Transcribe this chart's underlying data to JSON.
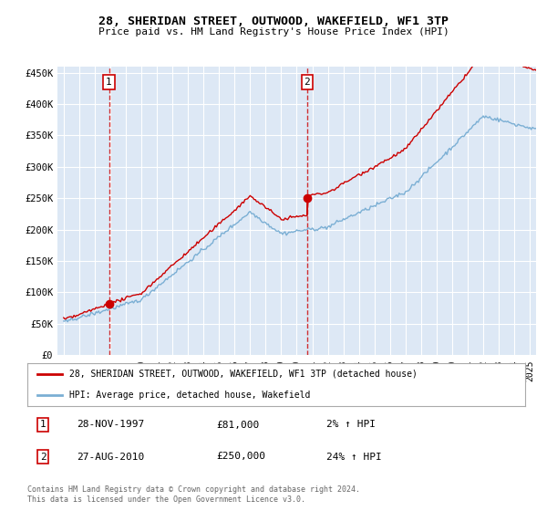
{
  "title": "28, SHERIDAN STREET, OUTWOOD, WAKEFIELD, WF1 3TP",
  "subtitle": "Price paid vs. HM Land Registry's House Price Index (HPI)",
  "ylim": [
    0,
    460000
  ],
  "yticks": [
    0,
    50000,
    100000,
    150000,
    200000,
    250000,
    300000,
    350000,
    400000,
    450000
  ],
  "ytick_labels": [
    "£0",
    "£50K",
    "£100K",
    "£150K",
    "£200K",
    "£250K",
    "£300K",
    "£350K",
    "£400K",
    "£450K"
  ],
  "plot_bg_color": "#dde8f5",
  "grid_color": "#ffffff",
  "sale1_price": 81000,
  "sale2_price": 250000,
  "line_color_property": "#cc0000",
  "line_color_hpi": "#7bafd4",
  "legend_property": "28, SHERIDAN STREET, OUTWOOD, WAKEFIELD, WF1 3TP (detached house)",
  "legend_hpi": "HPI: Average price, detached house, Wakefield",
  "annotation1_date": "28-NOV-1997",
  "annotation1_price": "£81,000",
  "annotation1_hpi": "2% ↑ HPI",
  "annotation2_date": "27-AUG-2010",
  "annotation2_price": "£250,000",
  "annotation2_hpi": "24% ↑ HPI",
  "footer": "Contains HM Land Registry data © Crown copyright and database right 2024.\nThis data is licensed under the Open Government Licence v3.0."
}
